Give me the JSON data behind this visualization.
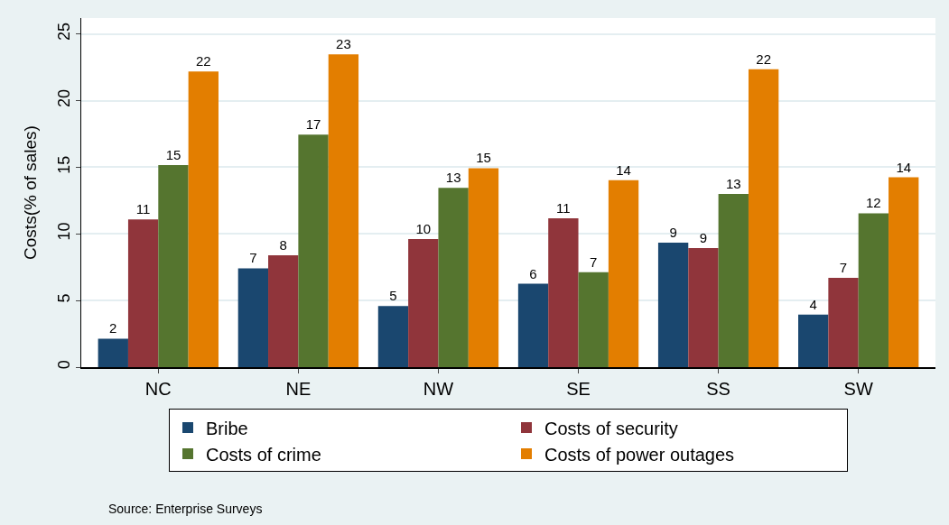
{
  "chart_data": {
    "type": "bar",
    "ylabel": "Costs(% of sales)",
    "categories": [
      "NC",
      "NE",
      "NW",
      "SE",
      "SS",
      "SW"
    ],
    "series": [
      {
        "name": "Bribe",
        "color": "#1a476f",
        "values": [
          2.14,
          7.42,
          4.58,
          6.26,
          9.34,
          3.94
        ],
        "value_labels": [
          "2",
          "7",
          "5",
          "6",
          "9",
          "4"
        ]
      },
      {
        "name": "Costs of security",
        "color": "#90353b",
        "values": [
          11.08,
          8.4,
          9.62,
          11.17,
          8.94,
          6.7
        ],
        "value_labels": [
          "11",
          "8",
          "10",
          "11",
          "9",
          "7"
        ]
      },
      {
        "name": "Costs of crime",
        "color": "#55752f",
        "values": [
          15.16,
          17.45,
          13.45,
          7.12,
          12.99,
          11.55
        ],
        "value_labels": [
          "15",
          "17",
          "13",
          "7",
          "13",
          "12"
        ]
      },
      {
        "name": "Costs of power outages",
        "color": "#e37e00",
        "values": [
          22.19,
          23.47,
          14.93,
          14.03,
          22.35,
          14.25
        ],
        "value_labels": [
          "22",
          "23",
          "15",
          "14",
          "22",
          "14"
        ]
      }
    ],
    "ylim": [
      0,
      26.2
    ],
    "yticks": [
      0,
      5,
      10,
      15,
      20,
      25
    ],
    "grid": "y",
    "legend": "bottom",
    "annotations": [
      "Source: Enterprise Surveys"
    ]
  }
}
